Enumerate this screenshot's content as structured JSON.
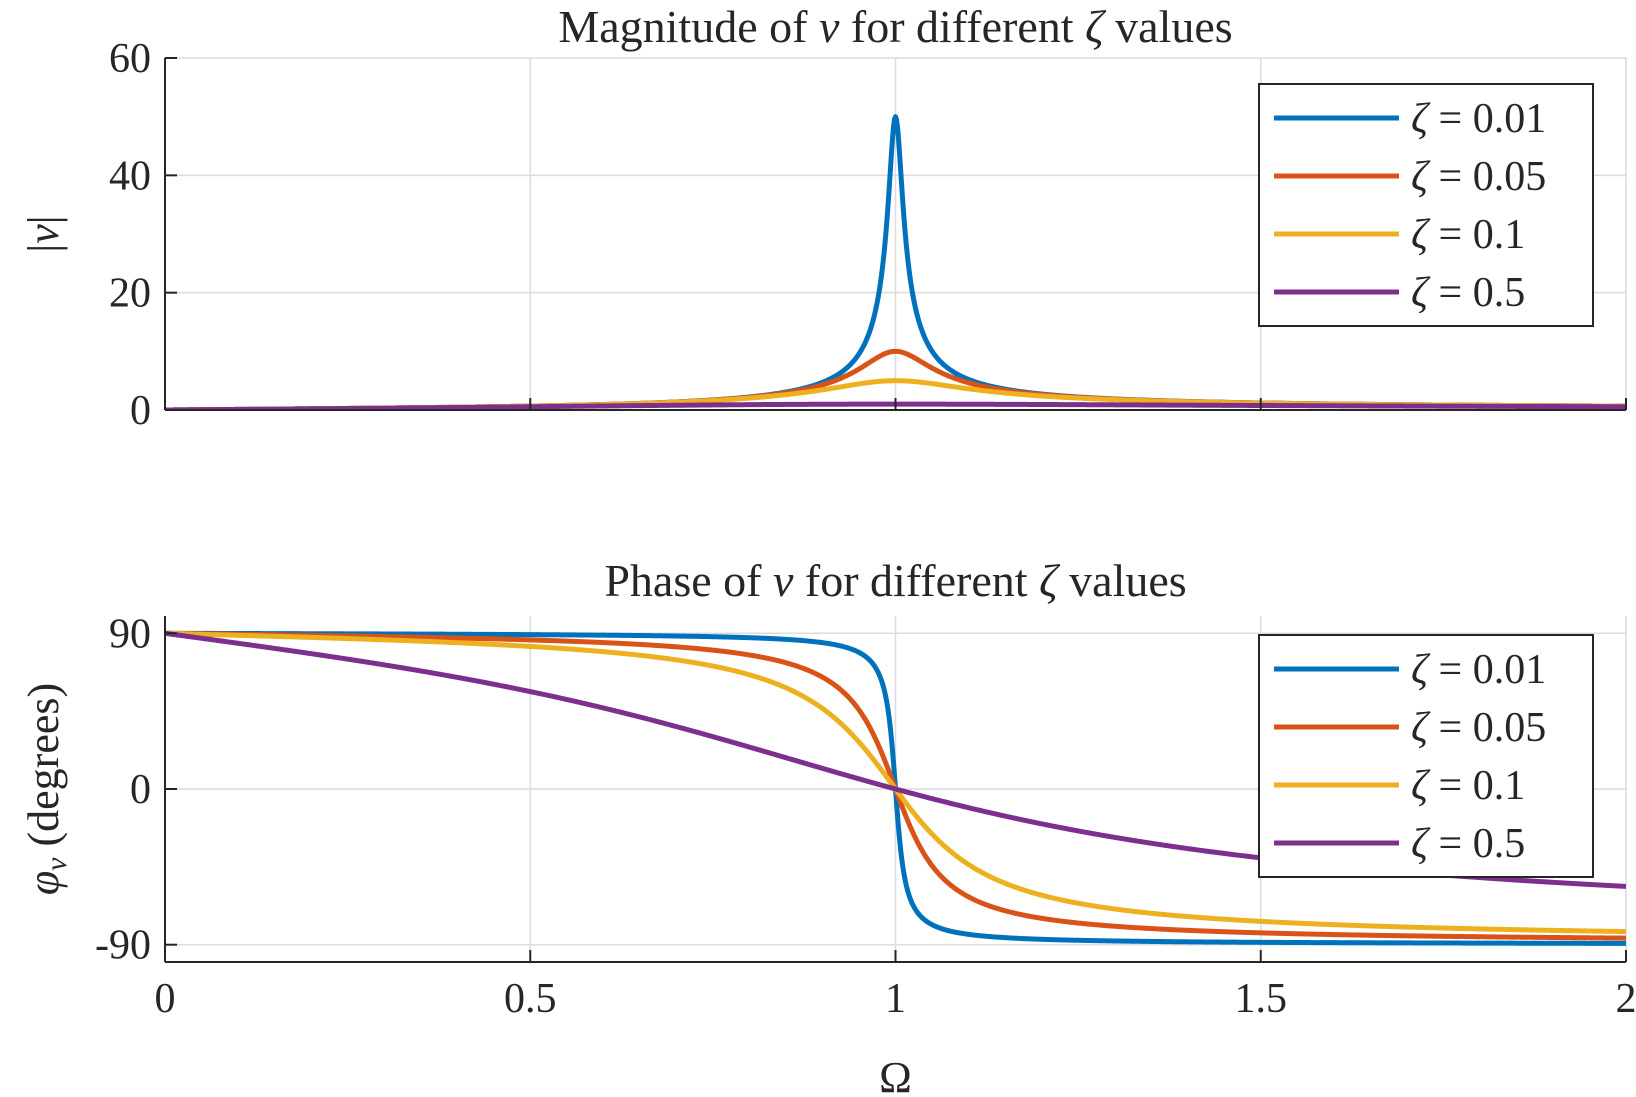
{
  "colors": {
    "series": [
      "#0072BD",
      "#D95319",
      "#EDB120",
      "#7E2F8E"
    ],
    "axis": "#262626",
    "grid": "#dcdcdc"
  },
  "chart_data": [
    {
      "type": "line",
      "title": {
        "prefix": "Magnitude of ",
        "var": "v",
        "middle": " for different ",
        "sym": "ζ",
        "suffix": " values"
      },
      "xlabel": "",
      "ylabel": {
        "left": "|",
        "var": "v",
        "right": "|"
      },
      "xlim": [
        0,
        2
      ],
      "ylim": [
        0,
        60
      ],
      "xticks": [
        0,
        0.5,
        1,
        1.5,
        2
      ],
      "xtick_labels": [],
      "yticks": [
        0,
        20,
        40,
        60
      ],
      "ytick_labels": [
        "0",
        "20",
        "40",
        "60"
      ],
      "grid": true,
      "legend_position": "top-right",
      "formula": "magnitude",
      "series": [
        {
          "sym": "ζ",
          "eq": " = 0.01",
          "zeta": 0.01
        },
        {
          "sym": "ζ",
          "eq": " = 0.05",
          "zeta": 0.05
        },
        {
          "sym": "ζ",
          "eq": " = 0.1",
          "zeta": 0.1
        },
        {
          "sym": "ζ",
          "eq": " = 0.5",
          "zeta": 0.5
        }
      ]
    },
    {
      "type": "line",
      "title": {
        "prefix": "Phase of ",
        "var": "v",
        "middle": " for different ",
        "sym": "ζ",
        "suffix": " values"
      },
      "xlabel": "Ω",
      "ylabel": {
        "sym": "φ",
        "sub": "v",
        "rest": " (degrees)"
      },
      "xlim": [
        0,
        2
      ],
      "ylim": [
        -100,
        100
      ],
      "xticks": [
        0,
        0.5,
        1,
        1.5,
        2
      ],
      "xtick_labels": [
        "0",
        "0.5",
        "1",
        "1.5",
        "2"
      ],
      "yticks": [
        -90,
        0,
        90
      ],
      "ytick_labels": [
        "-90",
        "0",
        "90"
      ],
      "grid": true,
      "legend_position": "top-right",
      "formula": "phase",
      "series": [
        {
          "sym": "ζ",
          "eq": " = 0.01",
          "zeta": 0.01
        },
        {
          "sym": "ζ",
          "eq": " = 0.05",
          "zeta": 0.05
        },
        {
          "sym": "ζ",
          "eq": " = 0.1",
          "zeta": 0.1
        },
        {
          "sym": "ζ",
          "eq": " = 0.5",
          "zeta": 0.5
        }
      ]
    }
  ]
}
